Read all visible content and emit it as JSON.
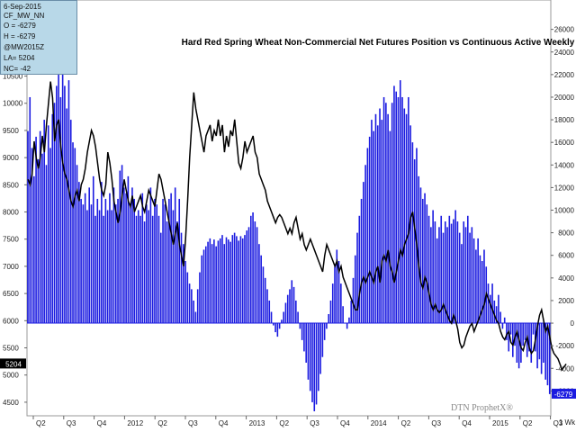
{
  "chart_data": {
    "type": "bar",
    "title": "Hard Red Spring Wheat Non-Commercial Net Futures Position vs Continuous Active Weekly",
    "left_axis": {
      "ylim": [
        4250,
        11900
      ],
      "ticks": [
        4500,
        5000,
        5500,
        6000,
        6500,
        7000,
        7500,
        8000,
        8500,
        9000,
        9500,
        10000,
        10500,
        11000,
        11500
      ]
    },
    "right_axis": {
      "ylim": [
        -8200,
        28600
      ],
      "ticks": [
        -6000,
        -4000,
        -2000,
        0,
        2000,
        4000,
        6000,
        8000,
        10000,
        12000,
        14000,
        16000,
        18000,
        20000,
        22000,
        24000,
        26000
      ]
    },
    "x_labels": [
      "Q2",
      "Q3",
      "Q4",
      "2012",
      "Q2",
      "Q3",
      "Q4",
      "2013",
      "Q2",
      "Q3",
      "Q4",
      "2014",
      "Q2",
      "Q3",
      "Q4",
      "2015",
      "Q2",
      "Q3"
    ],
    "x_edge_label": "1 Wk",
    "price_marker": "5204",
    "position_marker": "-6279",
    "watermark": "DTN ProphetX®",
    "infobox": [
      "6-Sep-2015",
      "CF_MW_NN",
      "O = -6279",
      "H = -6279",
      "@MW2015Z",
      "LA= 5204",
      "NC= -42"
    ],
    "series": [
      {
        "name": "CF_MW_NN",
        "axis": "right",
        "color": "#1a1ae0",
        "values": [
          17000,
          20000,
          15500,
          13000,
          16500,
          14500,
          17000,
          15000,
          18000,
          14000,
          17500,
          15500,
          18500,
          19500,
          21000,
          23000,
          20000,
          22000,
          21000,
          19000,
          21500,
          18000,
          16000,
          15500,
          14000,
          12500,
          11000,
          10500,
          11500,
          10000,
          12000,
          10500,
          13000,
          9500,
          11000,
          10000,
          12500,
          9500,
          11000,
          10000,
          11500,
          10000,
          12000,
          10500,
          11000,
          13500,
          14000,
          12000,
          11500,
          13000,
          10500,
          12000,
          11000,
          9500,
          10000,
          9500,
          11500,
          9000,
          10500,
          10000,
          12000,
          9500,
          11000,
          10500,
          9500,
          8000,
          11000,
          10500,
          9000,
          11000,
          11500,
          10000,
          12000,
          9000,
          11000,
          8000,
          7000,
          5500,
          4500,
          3500,
          3000,
          2000,
          1000,
          3000,
          4500,
          6000,
          6500,
          6800,
          7200,
          7500,
          7000,
          7400,
          6800,
          7300,
          7500,
          7800,
          7000,
          7600,
          7400,
          7200,
          7800,
          8000,
          7700,
          7300,
          7700,
          7500,
          7800,
          8200,
          8500,
          9500,
          9800,
          9000,
          8500,
          7000,
          6000,
          5000,
          4000,
          3000,
          2000,
          1000,
          -200,
          -800,
          -1200,
          -500,
          300,
          1000,
          1800,
          2500,
          3000,
          3800,
          3200,
          2000,
          1000,
          -500,
          -1500,
          -2500,
          -3500,
          -5000,
          -6000,
          -7000,
          -7800,
          -7200,
          -6000,
          -4500,
          -3000,
          -1500,
          -500,
          800,
          2000,
          3500,
          5000,
          6500,
          5500,
          3500,
          1500,
          0,
          -500,
          500,
          2000,
          4000,
          6000,
          8000,
          9500,
          11000,
          12500,
          14000,
          15500,
          16500,
          18000,
          17000,
          18500,
          17500,
          19000,
          18000,
          20000,
          19500,
          18500,
          17000,
          19500,
          21000,
          20500,
          20000,
          21500,
          20000,
          19000,
          18500,
          20000,
          17500,
          16000,
          14500,
          15500,
          13000,
          12000,
          11000,
          11500,
          10500,
          9500,
          8500,
          10000,
          9000,
          7500,
          8500,
          9500,
          8000,
          9000,
          8500,
          9500,
          8800,
          9200,
          10000,
          9000,
          8000,
          7000,
          9000,
          8500,
          9500,
          8000,
          8500,
          7500,
          6500,
          7500,
          6000,
          5500,
          6500,
          5000,
          3500,
          2500,
          3500,
          2000,
          1500,
          2500,
          1000,
          -500,
          500,
          -1500,
          -2500,
          -1000,
          -3000,
          -2000,
          -3500,
          -4000,
          -3500,
          -2000,
          -1500,
          -3000,
          -2500,
          -3500,
          -1000,
          -2500,
          -4000,
          -3200,
          -4500,
          -3500,
          -5000,
          -5500,
          -6279
        ]
      },
      {
        "name": "@MW2015Z",
        "axis": "left",
        "color": "#000000",
        "values": [
          8600,
          8500,
          8700,
          9300,
          9000,
          8800,
          9000,
          9400,
          9100,
          9600,
          10000,
          10400,
          10100,
          9300,
          9600,
          9700,
          9200,
          8900,
          8700,
          8600,
          8400,
          8200,
          8100,
          8300,
          8400,
          8200,
          8500,
          8600,
          8800,
          9100,
          9300,
          9500,
          9400,
          9200,
          8900,
          8600,
          8400,
          8300,
          8500,
          9100,
          8900,
          8600,
          8200,
          8000,
          7800,
          8000,
          8300,
          8600,
          8400,
          8200,
          8100,
          8300,
          8000,
          8100,
          8200,
          8300,
          8100,
          8000,
          8200,
          8400,
          8300,
          8200,
          8100,
          8400,
          8700,
          8600,
          8400,
          8200,
          8000,
          7800,
          7600,
          7400,
          7600,
          7800,
          7400,
          7200,
          7000,
          7500,
          8200,
          9000,
          9600,
          10200,
          9900,
          9700,
          9500,
          9300,
          9100,
          9400,
          9500,
          9600,
          9300,
          9500,
          9400,
          9700,
          9400,
          9600,
          9100,
          9400,
          9200,
          9500,
          9400,
          9700,
          9300,
          8900,
          8800,
          9000,
          9300,
          9100,
          9200,
          9300,
          9400,
          9100,
          9000,
          8700,
          8600,
          8500,
          8400,
          8200,
          8100,
          8000,
          7900,
          7800,
          7900,
          7950,
          7900,
          7800,
          7700,
          7600,
          7700,
          7600,
          7800,
          7900,
          7700,
          7500,
          7600,
          7400,
          7300,
          7400,
          7500,
          7400,
          7300,
          7200,
          7100,
          7000,
          6900,
          7200,
          7400,
          7300,
          7200,
          7100,
          7000,
          7100,
          6900,
          7000,
          6800,
          6700,
          6600,
          6500,
          6400,
          6300,
          6200,
          6200,
          6500,
          6700,
          6800,
          6700,
          6800,
          6900,
          6800,
          6700,
          6900,
          7000,
          6700,
          7100,
          7200,
          7100,
          7300,
          7000,
          6900,
          6700,
          6900,
          7100,
          7300,
          7200,
          7400,
          7500,
          7600,
          7900,
          8000,
          7700,
          7400,
          7000,
          6700,
          6600,
          6800,
          6700,
          6500,
          6300,
          6200,
          6300,
          6200,
          6150,
          6200,
          6300,
          6200,
          6100,
          6000,
          5950,
          6100,
          6000,
          5850,
          5600,
          5500,
          5550,
          5700,
          5800,
          5900,
          5950,
          5800,
          5900,
          6000,
          6100,
          6200,
          6300,
          6500,
          6400,
          6300,
          6200,
          6100,
          6000,
          5950,
          5800,
          5700,
          5650,
          5750,
          5800,
          5600,
          5550,
          5700,
          5800,
          5650,
          5500,
          5450,
          5600,
          5700,
          5500,
          5400,
          5450,
          5650,
          5900,
          6100,
          6200,
          6000,
          5800,
          5900,
          5700,
          5500,
          5400,
          5350,
          5300,
          5200,
          5100,
          5150,
          5204
        ]
      }
    ]
  }
}
